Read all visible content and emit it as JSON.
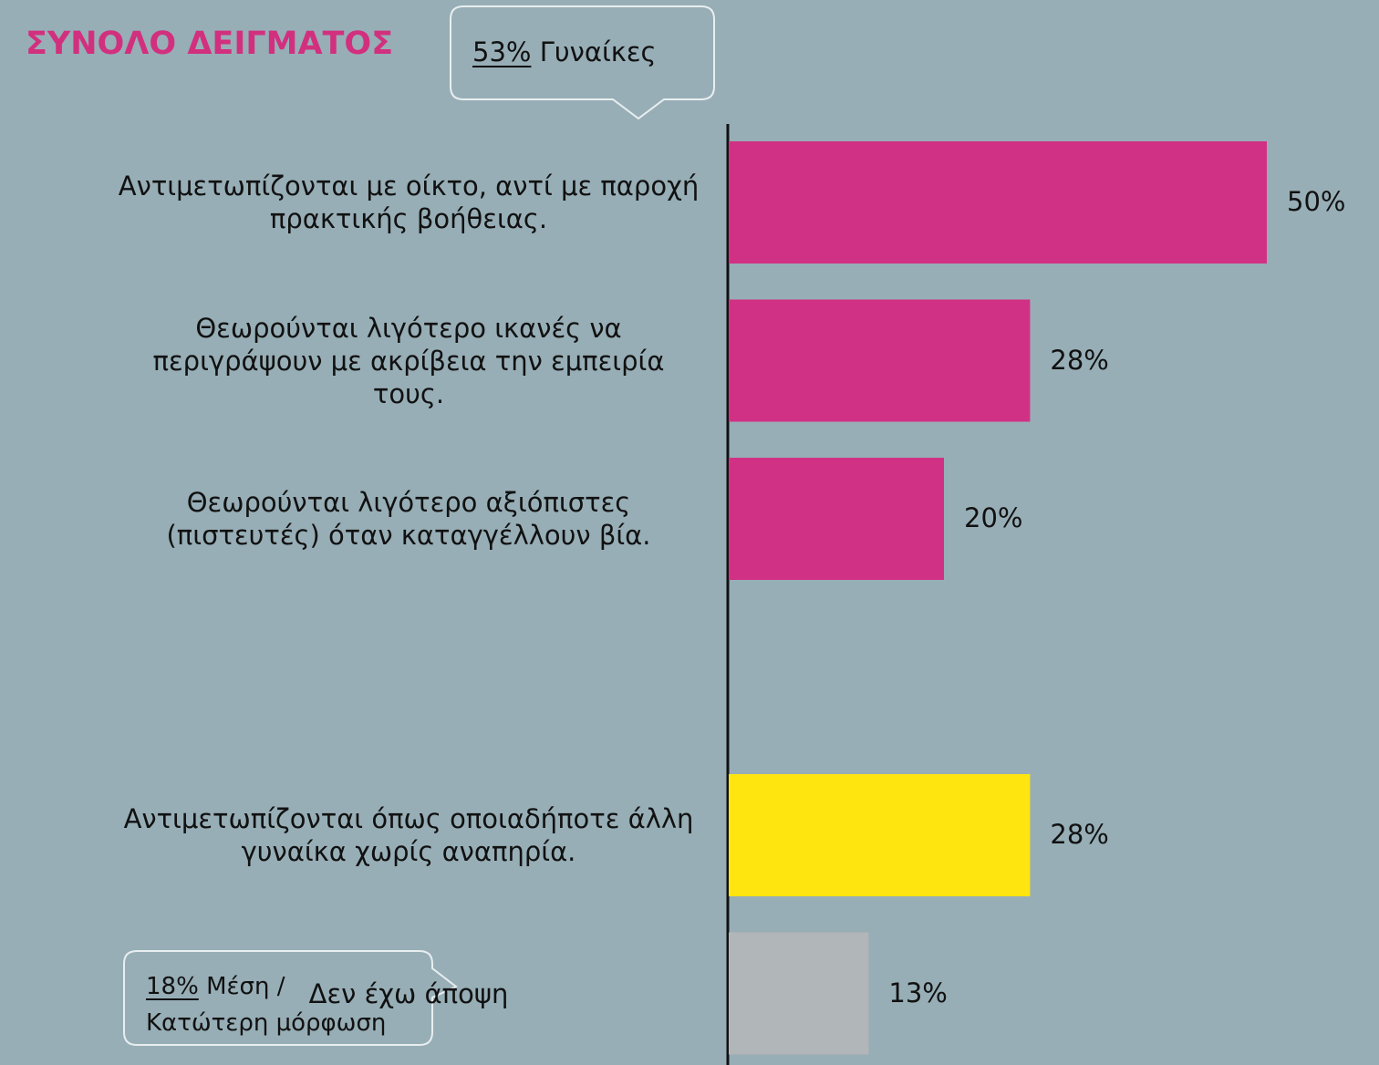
{
  "chart_data": {
    "type": "hbar",
    "title": "ΣΥΝΟΛΟ ΔΕΙΓΜΑΤΟΣ",
    "categories": [
      "Αντιμετωπίζονται με οίκτο, αντί με παροχή πρακτικής βοήθειας.",
      "Θεωρούνται λιγότερο ικανές να περιγράψουν με ακρίβεια την εμπειρία τους.",
      "Θεωρούνται λιγότερο αξιόπιστες (πιστευτές) όταν καταγγέλλουν βία.",
      "Αντιμετωπίζονται όπως οποιαδήποτε άλλη γυναίκα χωρίς αναπηρία.",
      "Δεν έχω άποψη"
    ],
    "values": [
      50,
      28,
      20,
      28,
      13
    ],
    "value_labels": [
      "50%",
      "28%",
      "20%",
      "28%",
      "13%"
    ],
    "colors": [
      "#d13184",
      "#d13184",
      "#d13184",
      "#ffe50f",
      "#b1b6b8"
    ],
    "annotations": [
      {
        "label": "53%",
        "text": "Γυναίκες"
      },
      {
        "label": "18%",
        "text": "Μέση / Κατώτερη μόρφωση"
      }
    ]
  }
}
